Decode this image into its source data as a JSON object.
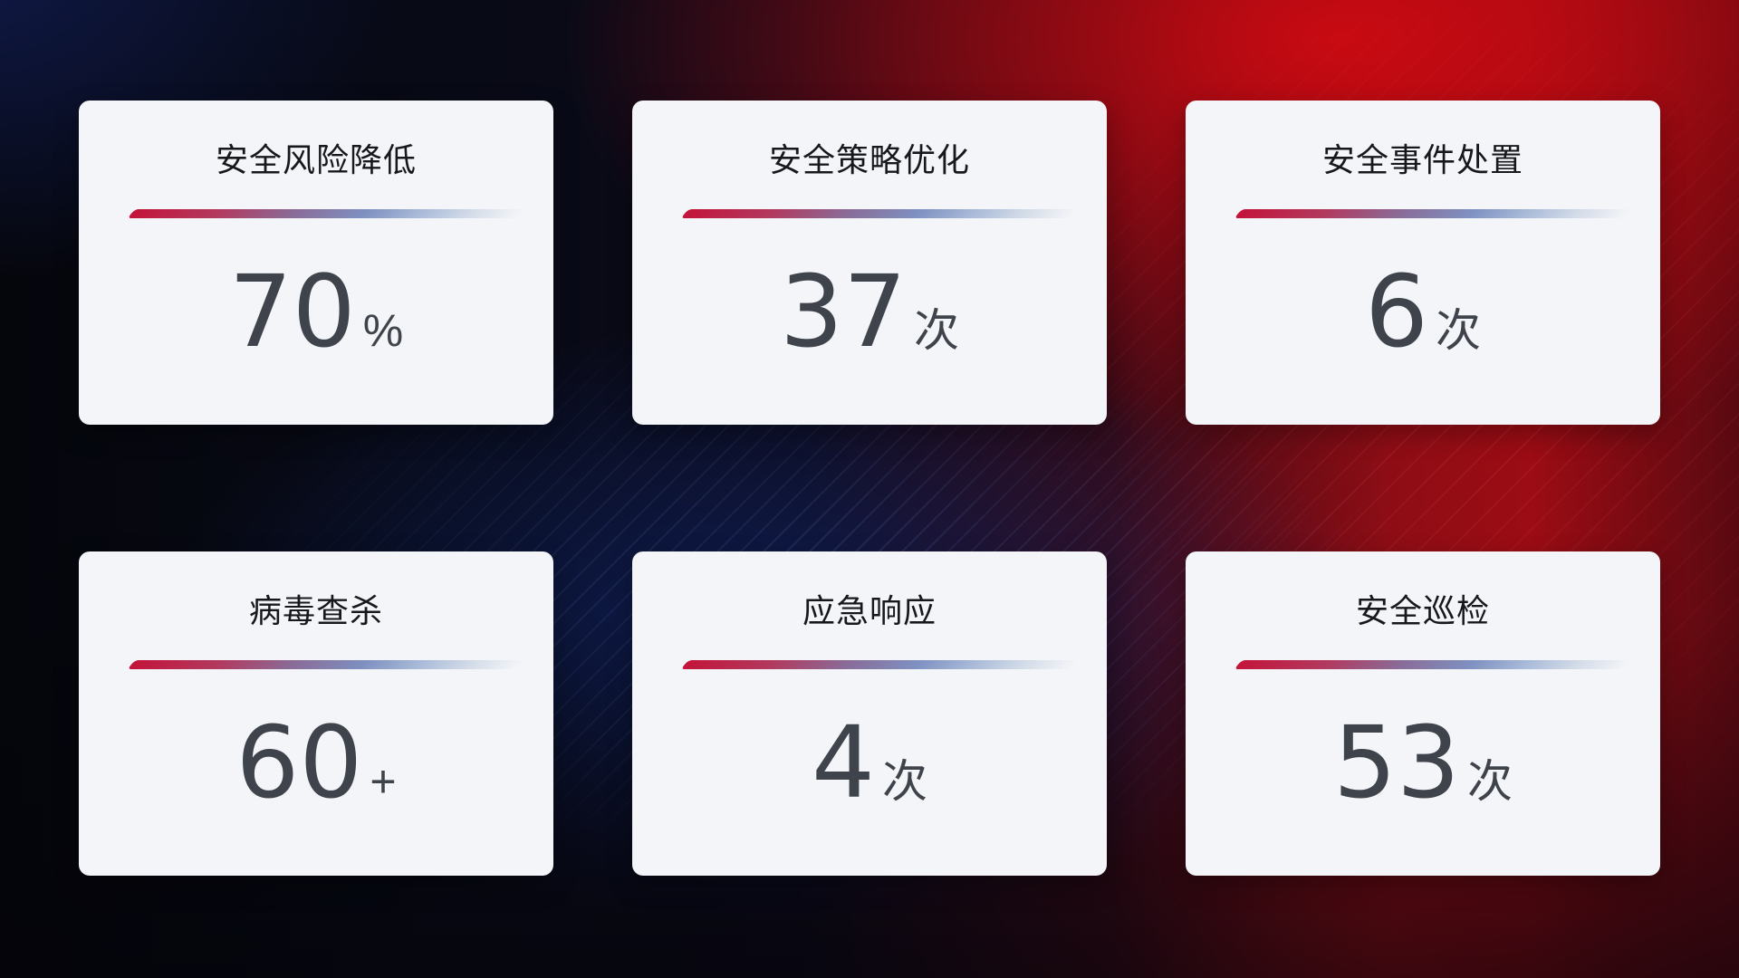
{
  "colors": {
    "card_background": "#f4f5f8",
    "title_text": "#17181d",
    "value_text": "#3f444c",
    "divider_gradient_start": "#c4143a",
    "divider_gradient_mid": "#7e91c1",
    "divider_gradient_end": "#d5dde9",
    "background_navy": "#0b1133",
    "background_blue_glow": "#112d84",
    "background_red": "#9c0c14"
  },
  "cards": [
    {
      "title": "安全风险降低",
      "value": "70",
      "unit": "%"
    },
    {
      "title": "安全策略优化",
      "value": "37",
      "unit": "次"
    },
    {
      "title": "安全事件处置",
      "value": "6",
      "unit": "次"
    },
    {
      "title": "病毒查杀",
      "value": "60",
      "unit": "+"
    },
    {
      "title": "应急响应",
      "value": "4",
      "unit": "次"
    },
    {
      "title": "安全巡检",
      "value": "53",
      "unit": "次"
    }
  ],
  "chart_data": {
    "type": "table",
    "categories": [
      "安全风险降低",
      "安全策略优化",
      "安全事件处置",
      "病毒查杀",
      "应急响应",
      "安全巡检"
    ],
    "values": [
      70,
      37,
      6,
      60,
      4,
      53
    ],
    "units": [
      "%",
      "次",
      "次",
      "+",
      "次",
      "次"
    ],
    "value_labels": [
      "70%",
      "37次",
      "6次",
      "60+",
      "4次",
      "53次"
    ],
    "layout": "2 rows x 3 columns of KPI stat cards on dark red/blue gradient background",
    "legend": "none",
    "grid": "off"
  }
}
